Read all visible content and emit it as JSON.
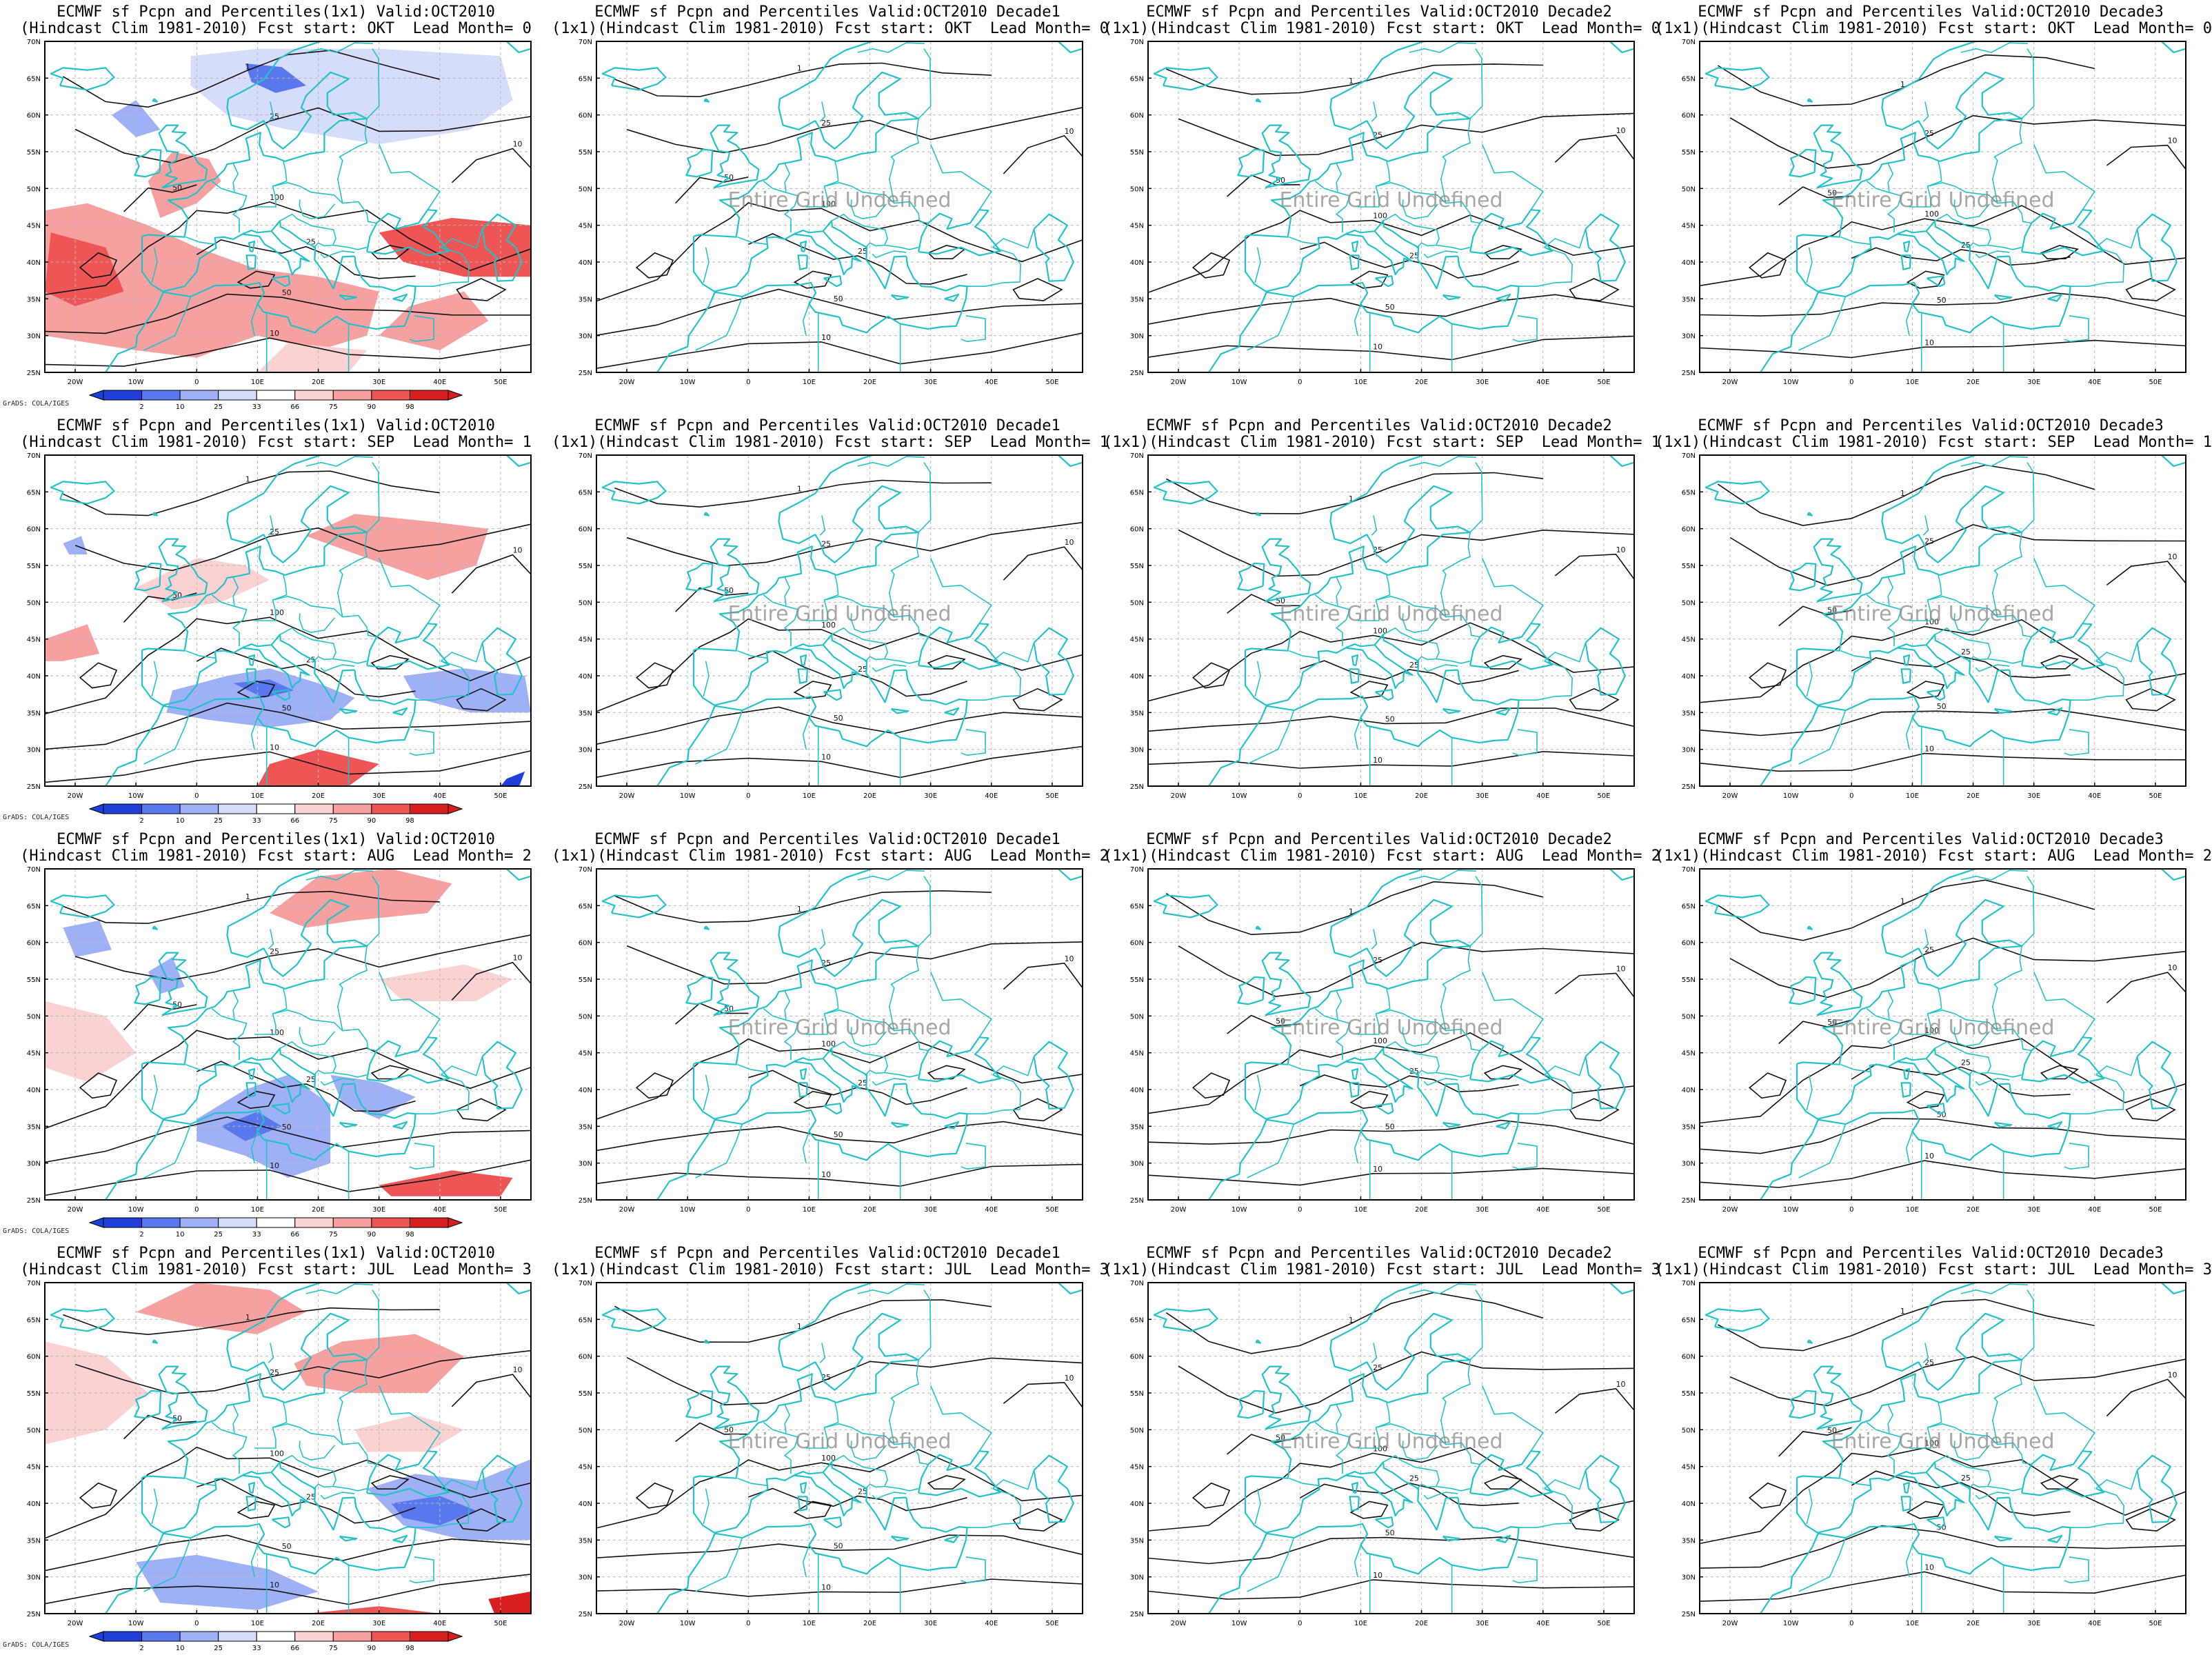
{
  "panels": [
    {
      "title1": "ECMWF sf Pcpn and Percentiles(1x1) Valid:OCT2010",
      "title2": "(Hindcast Clim 1981-2010) Fcst start: OKT  Lead Month= 0",
      "shaded": true,
      "message": "",
      "colorbar": {
        "labels": [
          "2",
          "10",
          "25",
          "33",
          "66",
          "75",
          "90",
          "98"
        ]
      },
      "credit": "GrADS: COLA/IGES"
    },
    {
      "title1": "ECMWF sf Pcpn and Percentiles Valid:OCT2010 Decade1",
      "title2": "(1x1)(Hindcast Clim 1981-2010) Fcst start: OKT  Lead Month= 0",
      "shaded": false,
      "message": "Entire Grid Undefined"
    },
    {
      "title1": "ECMWF sf Pcpn and Percentiles Valid:OCT2010 Decade2",
      "title2": "(1x1)(Hindcast Clim 1981-2010) Fcst start: OKT  Lead Month= 0",
      "shaded": false,
      "message": "Entire Grid Undefined"
    },
    {
      "title1": "ECMWF sf Pcpn and Percentiles Valid:OCT2010 Decade3",
      "title2": "(1x1)(Hindcast Clim 1981-2010) Fcst start: OKT  Lead Month= 0",
      "shaded": false,
      "message": "Entire Grid Undefined"
    },
    {
      "title1": "ECMWF sf Pcpn and Percentiles(1x1) Valid:OCT2010",
      "title2": "(Hindcast Clim 1981-2010) Fcst start: SEP  Lead Month= 1",
      "shaded": true,
      "message": "",
      "colorbar": {
        "labels": [
          "2",
          "10",
          "25",
          "33",
          "66",
          "75",
          "90",
          "98"
        ]
      },
      "credit": "GrADS: COLA/IGES"
    },
    {
      "title1": "ECMWF sf Pcpn and Percentiles Valid:OCT2010 Decade1",
      "title2": "(1x1)(Hindcast Clim 1981-2010) Fcst start: SEP  Lead Month= 1",
      "shaded": false,
      "message": "Entire Grid Undefined"
    },
    {
      "title1": "ECMWF sf Pcpn and Percentiles Valid:OCT2010 Decade2",
      "title2": "(1x1)(Hindcast Clim 1981-2010) Fcst start: SEP  Lead Month= 1",
      "shaded": false,
      "message": "Entire Grid Undefined"
    },
    {
      "title1": "ECMWF sf Pcpn and Percentiles Valid:OCT2010 Decade3",
      "title2": "(1x1)(Hindcast Clim 1981-2010) Fcst start: SEP  Lead Month= 1",
      "shaded": false,
      "message": "Entire Grid Undefined"
    },
    {
      "title1": "ECMWF sf Pcpn and Percentiles(1x1) Valid:OCT2010",
      "title2": "(Hindcast Clim 1981-2010) Fcst start: AUG  Lead Month= 2",
      "shaded": true,
      "message": "",
      "colorbar": {
        "labels": [
          "2",
          "10",
          "25",
          "33",
          "66",
          "75",
          "90",
          "98"
        ]
      },
      "credit": "GrADS: COLA/IGES"
    },
    {
      "title1": "ECMWF sf Pcpn and Percentiles Valid:OCT2010 Decade1",
      "title2": "(1x1)(Hindcast Clim 1981-2010) Fcst start: AUG  Lead Month= 2",
      "shaded": false,
      "message": "Entire Grid Undefined"
    },
    {
      "title1": "ECMWF sf Pcpn and Percentiles Valid:OCT2010 Decade2",
      "title2": "(1x1)(Hindcast Clim 1981-2010) Fcst start: AUG  Lead Month= 2",
      "shaded": false,
      "message": "Entire Grid Undefined"
    },
    {
      "title1": "ECMWF sf Pcpn and Percentiles Valid:OCT2010 Decade3",
      "title2": "(1x1)(Hindcast Clim 1981-2010) Fcst start: AUG  Lead Month= 2",
      "shaded": false,
      "message": "Entire Grid Undefined"
    },
    {
      "title1": "ECMWF sf Pcpn and Percentiles(1x1) Valid:OCT2010",
      "title2": "(Hindcast Clim 1981-2010) Fcst start: JUL  Lead Month= 3",
      "shaded": true,
      "message": "",
      "colorbar": {
        "labels": [
          "2",
          "10",
          "25",
          "33",
          "66",
          "75",
          "90",
          "98"
        ]
      },
      "credit": "GrADS: COLA/IGES"
    },
    {
      "title1": "ECMWF sf Pcpn and Percentiles Valid:OCT2010 Decade1",
      "title2": "(1x1)(Hindcast Clim 1981-2010) Fcst start: JUL  Lead Month= 3",
      "shaded": false,
      "message": "Entire Grid Undefined"
    },
    {
      "title1": "ECMWF sf Pcpn and Percentiles Valid:OCT2010 Decade2",
      "title2": "(1x1)(Hindcast Clim 1981-2010) Fcst start: JUL  Lead Month= 3",
      "shaded": false,
      "message": "Entire Grid Undefined"
    },
    {
      "title1": "ECMWF sf Pcpn and Percentiles Valid:OCT2010 Decade3",
      "title2": "(1x1)(Hindcast Clim 1981-2010) Fcst start: JUL  Lead Month= 3",
      "shaded": false,
      "message": "Entire Grid Undefined"
    }
  ],
  "map": {
    "lat_labels": [
      "70N",
      "65N",
      "60N",
      "55N",
      "50N",
      "45N",
      "40N",
      "35N",
      "30N",
      "25N"
    ],
    "lon_labels": [
      "20W",
      "10W",
      "0",
      "10E",
      "20E",
      "30E",
      "40E",
      "50E"
    ]
  },
  "colors": {
    "coast": "#22c2c9",
    "contour": "#111111",
    "colorbar": [
      "#1f3fd8",
      "#5a78ee",
      "#9fb1f6",
      "#d6ddfb",
      "#ffffff",
      "#fbd1d1",
      "#f6a0a0",
      "#ee5656",
      "#d81f1f"
    ]
  }
}
